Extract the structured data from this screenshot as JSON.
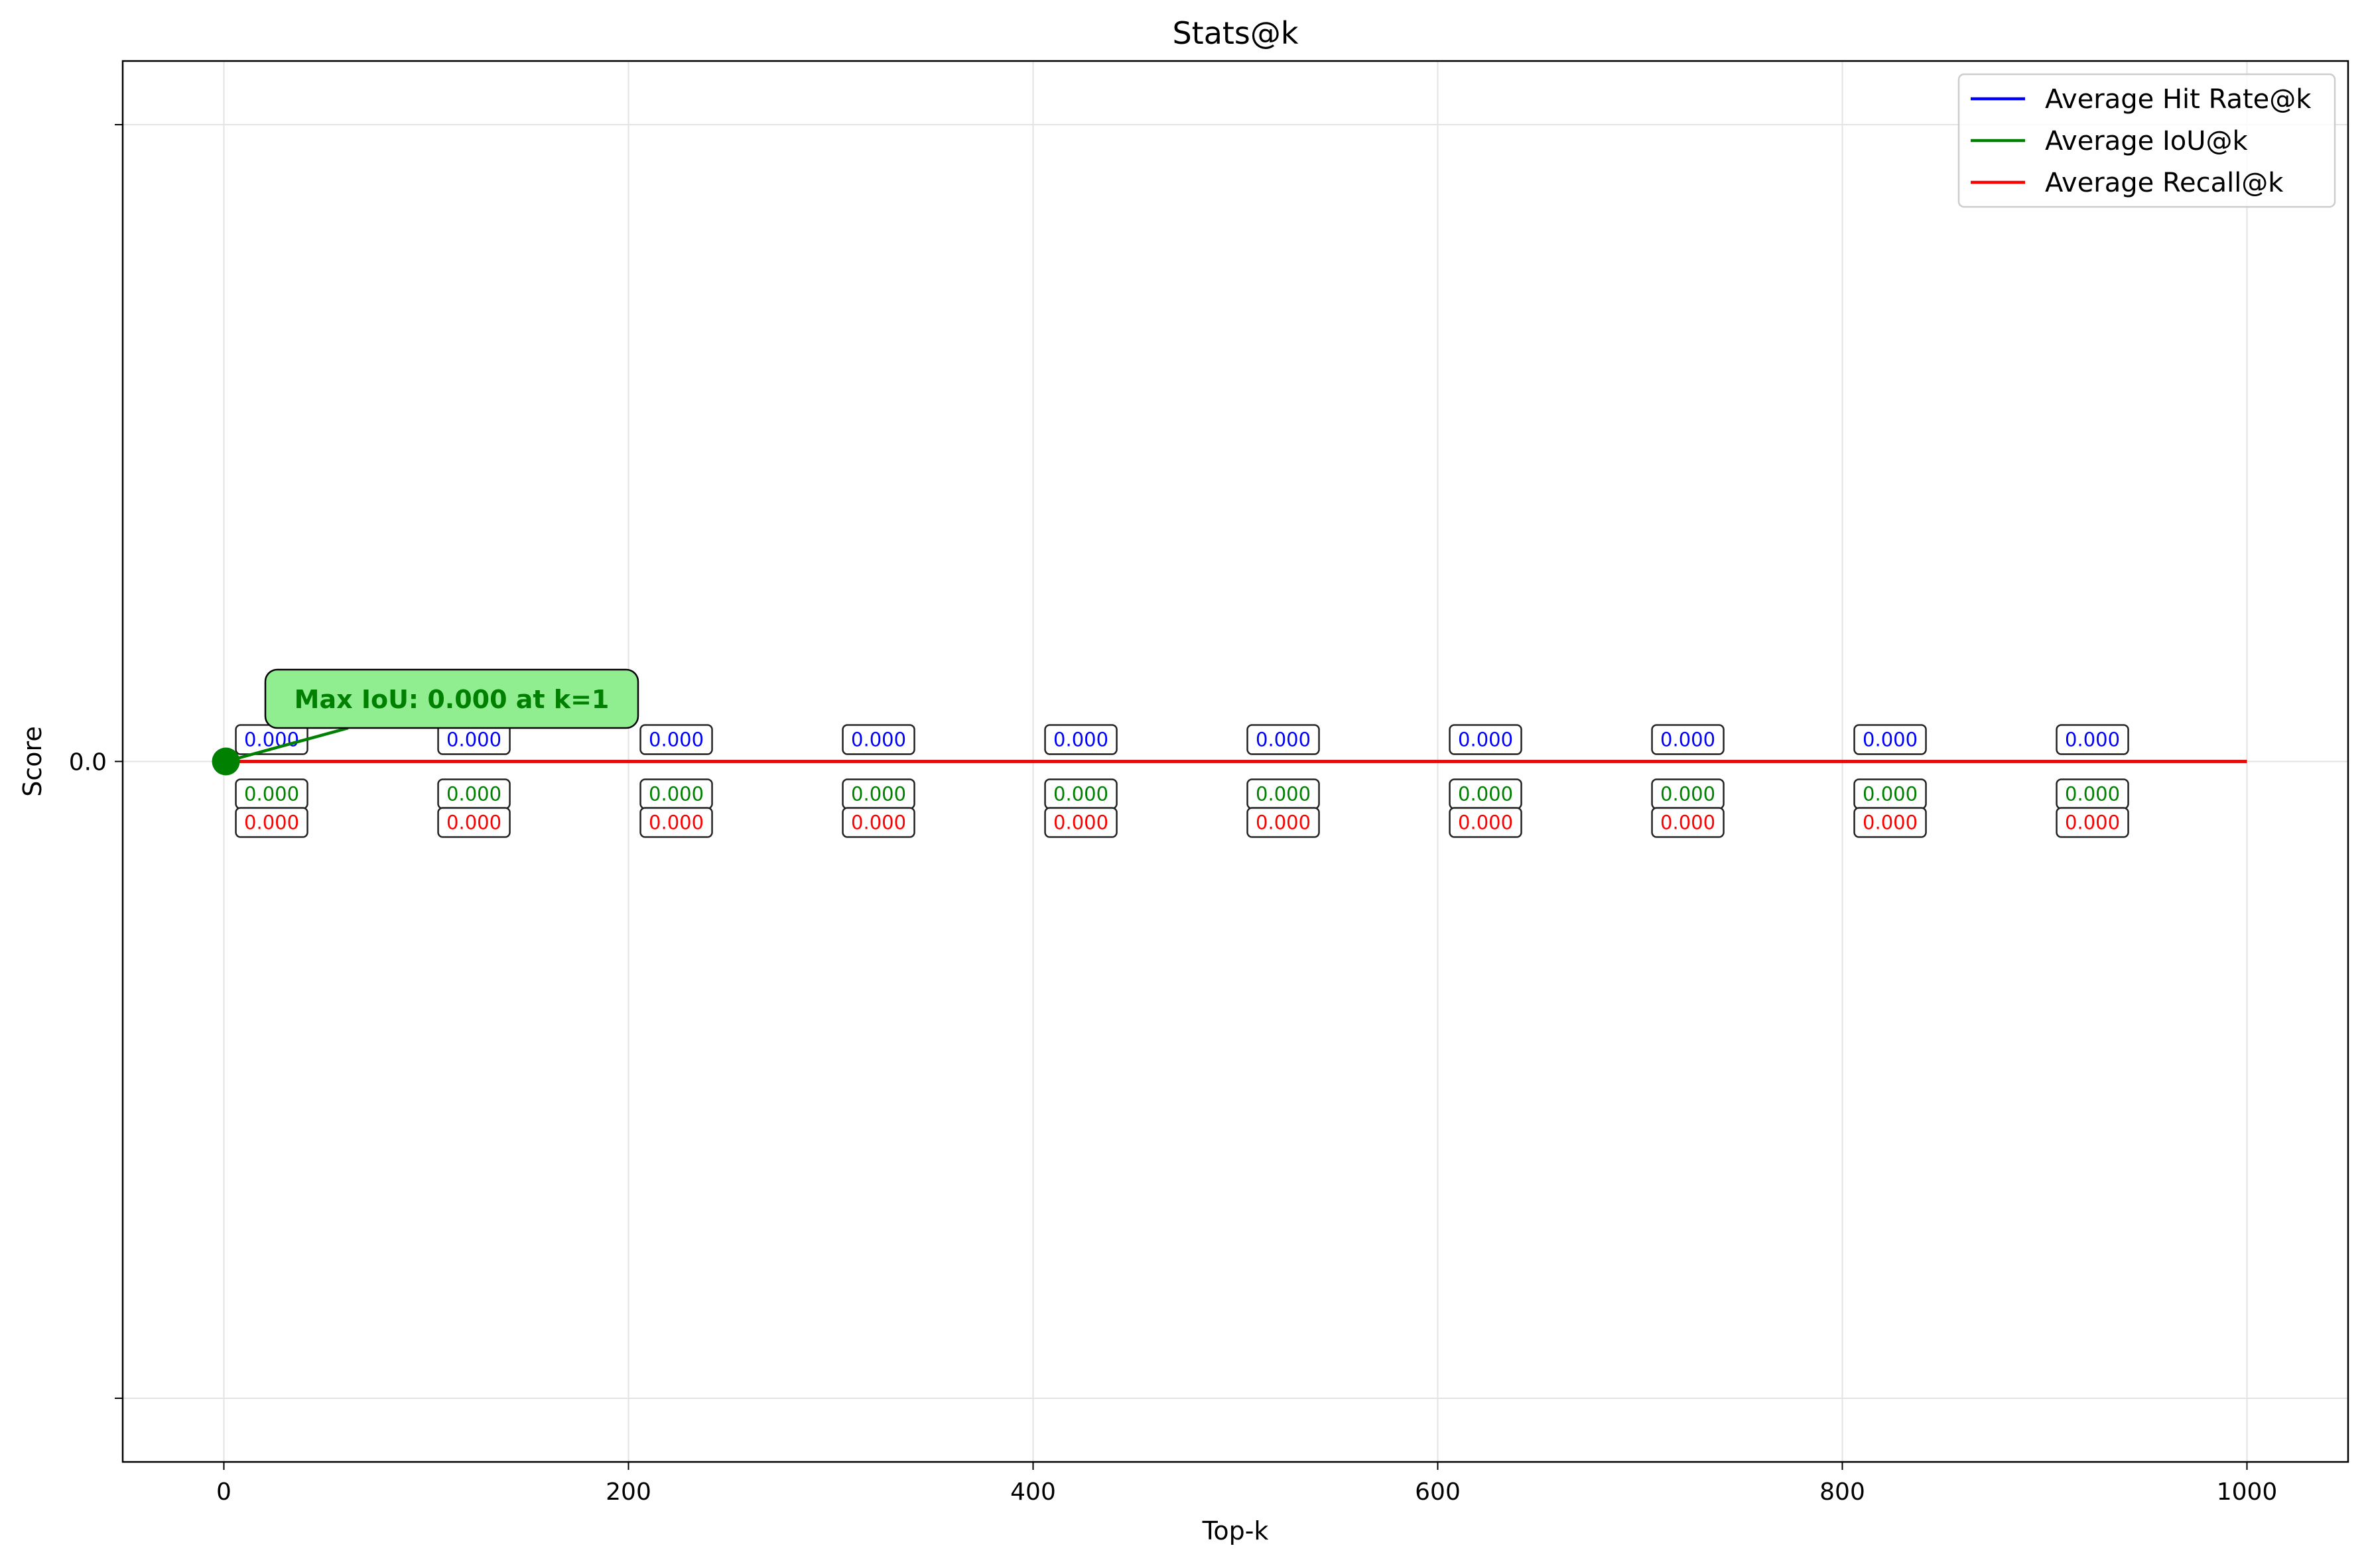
{
  "chart_data": {
    "type": "line",
    "title": "Stats@k",
    "xlabel": "Top-k",
    "ylabel": "Score",
    "xlim": [
      -50,
      1050
    ],
    "ylim": [
      -0.055,
      0.055
    ],
    "xticks": [
      0,
      200,
      400,
      600,
      800,
      1000
    ],
    "xtick_labels": [
      "0",
      "200",
      "400",
      "600",
      "800",
      "1000"
    ],
    "yticks": [
      -0.05,
      0.0,
      0.05
    ],
    "ytick_labels": [
      "",
      "0.0",
      ""
    ],
    "grid": true,
    "legend_position": "top-right",
    "series": [
      {
        "name": "Average Hit Rate@k",
        "color": "#0000ff",
        "x": [
          1,
          1000
        ],
        "y": [
          0.0,
          0.0
        ]
      },
      {
        "name": "Average IoU@k",
        "color": "#008000",
        "x": [
          1,
          1000
        ],
        "y": [
          0.0,
          0.0
        ]
      },
      {
        "name": "Average Recall@k",
        "color": "#ff0000",
        "x": [
          1,
          1000
        ],
        "y": [
          0.0,
          0.0
        ]
      }
    ],
    "point_labels": {
      "k": [
        1,
        101,
        201,
        301,
        401,
        501,
        601,
        701,
        801,
        901
      ],
      "hit_rate": [
        "0.000",
        "0.000",
        "0.000",
        "0.000",
        "0.000",
        "0.000",
        "0.000",
        "0.000",
        "0.000",
        "0.000"
      ],
      "iou": [
        "0.000",
        "0.000",
        "0.000",
        "0.000",
        "0.000",
        "0.000",
        "0.000",
        "0.000",
        "0.000",
        "0.000"
      ],
      "recall": [
        "0.000",
        "0.000",
        "0.000",
        "0.000",
        "0.000",
        "0.000",
        "0.000",
        "0.000",
        "0.000",
        "0.000"
      ]
    },
    "annotation": {
      "text": "Max IoU: 0.000 at k=1",
      "x": 1,
      "y": 0.0,
      "marker_color": "#008000",
      "box_color": "#90ee90"
    }
  }
}
